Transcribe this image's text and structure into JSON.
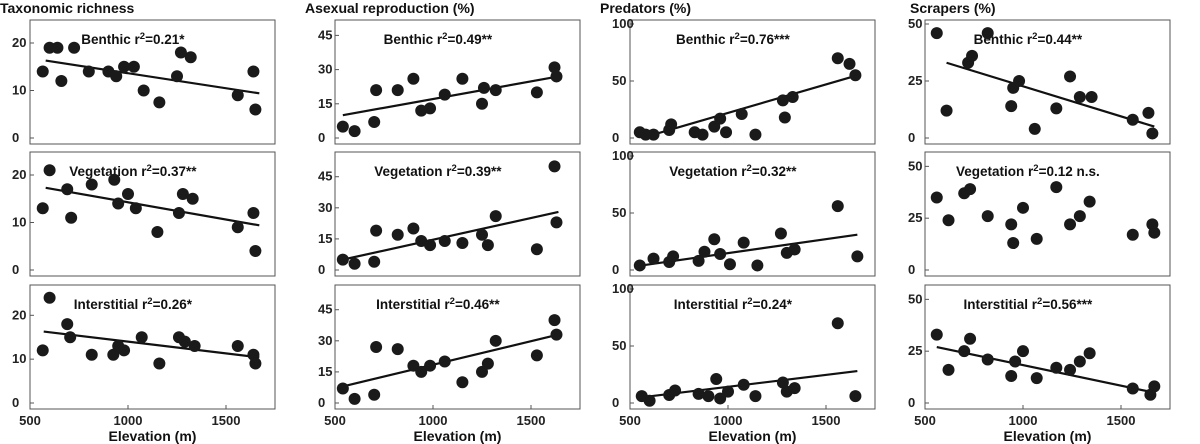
{
  "chart_data": [
    {
      "type": "scatter",
      "column": "Taxonomic richness",
      "panel": "Benthic",
      "stat": "r",
      "sup": "2",
      "val": "=0.21*",
      "xlim": [
        500,
        1750
      ],
      "ylim": [
        0,
        24
      ],
      "yticks": [
        "0",
        "10",
        "20"
      ],
      "ytick_values": [
        0,
        10,
        20
      ],
      "xticks": [],
      "points": [
        [
          565,
          14
        ],
        [
          600,
          19
        ],
        [
          640,
          19
        ],
        [
          660,
          12
        ],
        [
          725,
          19
        ],
        [
          800,
          14
        ],
        [
          900,
          14
        ],
        [
          940,
          13
        ],
        [
          980,
          15
        ],
        [
          1030,
          15
        ],
        [
          1080,
          10
        ],
        [
          1160,
          7.5
        ],
        [
          1250,
          13
        ],
        [
          1270,
          18
        ],
        [
          1320,
          17
        ],
        [
          1560,
          9
        ],
        [
          1640,
          14
        ],
        [
          1650,
          6
        ]
      ],
      "line": [
        [
          580,
          16.3
        ],
        [
          1670,
          9.4
        ]
      ]
    },
    {
      "type": "scatter",
      "column": "Asexual reproduction (%)",
      "panel": "Benthic",
      "stat": "r",
      "sup": "2",
      "val": "=0.49**",
      "xlim": [
        500,
        1750
      ],
      "ylim": [
        0,
        50
      ],
      "yticks": [
        "0",
        "15",
        "30",
        "45"
      ],
      "ytick_values": [
        0,
        15,
        30,
        45
      ],
      "xticks": [],
      "points": [
        [
          540,
          5
        ],
        [
          600,
          3
        ],
        [
          700,
          7
        ],
        [
          710,
          21
        ],
        [
          820,
          21
        ],
        [
          900,
          26
        ],
        [
          940,
          12
        ],
        [
          985,
          13
        ],
        [
          1060,
          19
        ],
        [
          1150,
          26
        ],
        [
          1250,
          15
        ],
        [
          1260,
          22
        ],
        [
          1320,
          21
        ],
        [
          1530,
          20
        ],
        [
          1620,
          31
        ],
        [
          1630,
          27
        ]
      ],
      "line": [
        [
          540,
          10
        ],
        [
          1640,
          27
        ]
      ]
    },
    {
      "type": "scatter",
      "column": "Predators (%)",
      "panel": "Benthic",
      "stat": "r",
      "sup": "2",
      "val": "=0.76***",
      "xlim": [
        500,
        1750
      ],
      "ylim": [
        0,
        100
      ],
      "yticks": [
        "0",
        "50",
        "100"
      ],
      "ytick_values": [
        0,
        50,
        100
      ],
      "xticks": [],
      "points": [
        [
          550,
          5
        ],
        [
          580,
          3
        ],
        [
          620,
          3
        ],
        [
          700,
          7
        ],
        [
          710,
          12
        ],
        [
          830,
          5
        ],
        [
          870,
          3
        ],
        [
          930,
          10
        ],
        [
          960,
          17
        ],
        [
          990,
          5
        ],
        [
          1070,
          21
        ],
        [
          1140,
          3
        ],
        [
          1280,
          33
        ],
        [
          1290,
          18
        ],
        [
          1330,
          36
        ],
        [
          1560,
          70
        ],
        [
          1620,
          65
        ],
        [
          1650,
          55
        ]
      ],
      "line": [
        [
          560,
          0
        ],
        [
          1660,
          55
        ]
      ]
    },
    {
      "type": "scatter",
      "column": "Scrapers (%)",
      "panel": "Benthic",
      "stat": "r",
      "sup": "2",
      "val": "=0.44**",
      "xlim": [
        500,
        1750
      ],
      "ylim": [
        0,
        50
      ],
      "yticks": [
        "0",
        "25",
        "50"
      ],
      "ytick_values": [
        0,
        25,
        50
      ],
      "xticks": [],
      "points": [
        [
          560,
          46
        ],
        [
          610,
          12
        ],
        [
          720,
          33
        ],
        [
          740,
          36
        ],
        [
          820,
          46
        ],
        [
          940,
          14
        ],
        [
          950,
          22
        ],
        [
          980,
          25
        ],
        [
          1060,
          4
        ],
        [
          1170,
          13
        ],
        [
          1240,
          27
        ],
        [
          1290,
          18
        ],
        [
          1350,
          18
        ],
        [
          1560,
          8
        ],
        [
          1640,
          11
        ],
        [
          1660,
          2
        ]
      ],
      "line": [
        [
          610,
          33
        ],
        [
          1670,
          5
        ]
      ]
    },
    {
      "type": "scatter",
      "column": "Taxonomic richness",
      "panel": "Vegetation",
      "stat": "r",
      "sup": "2",
      "val": "=0.37**",
      "xlim": [
        500,
        1750
      ],
      "ylim": [
        0,
        24
      ],
      "yticks": [
        "0",
        "10",
        "20"
      ],
      "ytick_values": [
        0,
        10,
        20
      ],
      "xticks": [],
      "points": [
        [
          565,
          13
        ],
        [
          600,
          21
        ],
        [
          690,
          17
        ],
        [
          710,
          11
        ],
        [
          815,
          18
        ],
        [
          930,
          19
        ],
        [
          950,
          14
        ],
        [
          1000,
          16
        ],
        [
          1040,
          13
        ],
        [
          1150,
          8
        ],
        [
          1260,
          12
        ],
        [
          1280,
          16
        ],
        [
          1330,
          15
        ],
        [
          1560,
          9
        ],
        [
          1640,
          12
        ],
        [
          1650,
          4
        ]
      ],
      "line": [
        [
          580,
          17.3
        ],
        [
          1670,
          9.4
        ]
      ]
    },
    {
      "type": "scatter",
      "column": "Asexual reproduction (%)",
      "panel": "Vegetation",
      "stat": "r",
      "sup": "2",
      "val": "=0.39**",
      "xlim": [
        500,
        1750
      ],
      "ylim": [
        0,
        55
      ],
      "yticks": [
        "0",
        "15",
        "30",
        "45"
      ],
      "ytick_values": [
        0,
        15,
        30,
        45
      ],
      "xticks": [],
      "points": [
        [
          540,
          5
        ],
        [
          600,
          3
        ],
        [
          700,
          4
        ],
        [
          710,
          19
        ],
        [
          820,
          17
        ],
        [
          900,
          20
        ],
        [
          940,
          14
        ],
        [
          985,
          12
        ],
        [
          1060,
          14
        ],
        [
          1150,
          13
        ],
        [
          1250,
          17
        ],
        [
          1280,
          12
        ],
        [
          1320,
          26
        ],
        [
          1530,
          10
        ],
        [
          1620,
          50
        ],
        [
          1630,
          23
        ]
      ],
      "line": [
        [
          540,
          5
        ],
        [
          1640,
          28
        ]
      ]
    },
    {
      "type": "scatter",
      "column": "Predators (%)",
      "panel": "Vegetation",
      "stat": "r",
      "sup": "2",
      "val": "=0.32**",
      "xlim": [
        500,
        1750
      ],
      "ylim": [
        0,
        100
      ],
      "yticks": [
        "0",
        "50",
        "100"
      ],
      "ytick_values": [
        0,
        50,
        100
      ],
      "xticks": [],
      "points": [
        [
          550,
          4
        ],
        [
          620,
          10
        ],
        [
          700,
          7
        ],
        [
          720,
          12
        ],
        [
          850,
          8
        ],
        [
          880,
          16
        ],
        [
          930,
          27
        ],
        [
          960,
          14
        ],
        [
          1010,
          5
        ],
        [
          1080,
          24
        ],
        [
          1150,
          4
        ],
        [
          1270,
          32
        ],
        [
          1300,
          15
        ],
        [
          1340,
          18
        ],
        [
          1560,
          56
        ],
        [
          1660,
          12
        ]
      ],
      "line": [
        [
          560,
          4
        ],
        [
          1660,
          31
        ]
      ]
    },
    {
      "type": "scatter",
      "column": "Scrapers (%)",
      "panel": "Vegetation",
      "stat": "r",
      "sup": "2",
      "val": "=0.12 n.s.",
      "xlim": [
        500,
        1750
      ],
      "ylim": [
        0,
        55
      ],
      "yticks": [
        "0",
        "25",
        "50"
      ],
      "ytick_values": [
        0,
        25,
        50
      ],
      "xticks": [],
      "points": [
        [
          560,
          35
        ],
        [
          620,
          24
        ],
        [
          700,
          37
        ],
        [
          730,
          39
        ],
        [
          820,
          26
        ],
        [
          940,
          22
        ],
        [
          950,
          13
        ],
        [
          1000,
          30
        ],
        [
          1070,
          15
        ],
        [
          1170,
          40
        ],
        [
          1240,
          22
        ],
        [
          1290,
          26
        ],
        [
          1340,
          33
        ],
        [
          1560,
          17
        ],
        [
          1660,
          22
        ],
        [
          1670,
          18
        ]
      ],
      "line": []
    },
    {
      "type": "scatter",
      "column": "Taxonomic richness",
      "panel": "Interstitial",
      "stat": "r",
      "sup": "2",
      "val": "=0.26*",
      "xlim": [
        500,
        1750
      ],
      "ylim": [
        0,
        26
      ],
      "yticks": [
        "0",
        "10",
        "20"
      ],
      "ytick_values": [
        0,
        10,
        20
      ],
      "xticks": [
        "500",
        "1000",
        "1500"
      ],
      "points": [
        [
          565,
          12
        ],
        [
          600,
          24
        ],
        [
          690,
          18
        ],
        [
          705,
          15
        ],
        [
          815,
          11
        ],
        [
          925,
          11
        ],
        [
          950,
          13
        ],
        [
          980,
          12
        ],
        [
          1070,
          15
        ],
        [
          1160,
          9
        ],
        [
          1260,
          15
        ],
        [
          1290,
          14
        ],
        [
          1340,
          13
        ],
        [
          1560,
          13
        ],
        [
          1640,
          11
        ],
        [
          1650,
          9
        ]
      ],
      "line": [
        [
          570,
          16.3
        ],
        [
          1670,
          10.4
        ]
      ]
    },
    {
      "type": "scatter",
      "column": "Asexual reproduction (%)",
      "panel": "Interstitial",
      "stat": "r",
      "sup": "2",
      "val": "=0.46**",
      "xlim": [
        500,
        1750
      ],
      "ylim": [
        0,
        55
      ],
      "yticks": [
        "0",
        "15",
        "30",
        "45"
      ],
      "ytick_values": [
        0,
        15,
        30,
        45
      ],
      "xticks": [
        "500",
        "1000",
        "1500"
      ],
      "points": [
        [
          540,
          7
        ],
        [
          600,
          2
        ],
        [
          700,
          4
        ],
        [
          710,
          27
        ],
        [
          820,
          26
        ],
        [
          900,
          18
        ],
        [
          940,
          15
        ],
        [
          985,
          18
        ],
        [
          1060,
          20
        ],
        [
          1150,
          10
        ],
        [
          1250,
          15
        ],
        [
          1280,
          19
        ],
        [
          1320,
          30
        ],
        [
          1530,
          23
        ],
        [
          1620,
          40
        ],
        [
          1630,
          33
        ]
      ],
      "line": [
        [
          540,
          8
        ],
        [
          1640,
          33
        ]
      ]
    },
    {
      "type": "scatter",
      "column": "Predators (%)",
      "panel": "Interstitial",
      "stat": "r",
      "sup": "2",
      "val": "=0.24*",
      "xlim": [
        500,
        1750
      ],
      "ylim": [
        0,
        100
      ],
      "yticks": [
        "0",
        "50",
        "100"
      ],
      "ytick_values": [
        0,
        50,
        100
      ],
      "xticks": [
        "500",
        "1000",
        "1500"
      ],
      "points": [
        [
          560,
          6
        ],
        [
          600,
          2
        ],
        [
          700,
          7
        ],
        [
          730,
          11
        ],
        [
          850,
          8
        ],
        [
          900,
          6
        ],
        [
          940,
          21
        ],
        [
          960,
          4
        ],
        [
          1000,
          10
        ],
        [
          1080,
          16
        ],
        [
          1140,
          6
        ],
        [
          1280,
          18
        ],
        [
          1300,
          10
        ],
        [
          1340,
          13
        ],
        [
          1560,
          70
        ],
        [
          1650,
          6
        ]
      ],
      "line": [
        [
          560,
          5
        ],
        [
          1660,
          28
        ]
      ]
    },
    {
      "type": "scatter",
      "column": "Scrapers (%)",
      "panel": "Interstitial",
      "stat": "r",
      "sup": "2",
      "val": "=0.56***",
      "xlim": [
        500,
        1750
      ],
      "ylim": [
        0,
        55
      ],
      "yticks": [
        "0",
        "25",
        "50"
      ],
      "ytick_values": [
        0,
        25,
        50
      ],
      "xticks": [
        "500",
        "1000",
        "1500"
      ],
      "points": [
        [
          560,
          33
        ],
        [
          620,
          16
        ],
        [
          700,
          25
        ],
        [
          730,
          31
        ],
        [
          820,
          21
        ],
        [
          940,
          13
        ],
        [
          960,
          20
        ],
        [
          1000,
          25
        ],
        [
          1070,
          12
        ],
        [
          1170,
          17
        ],
        [
          1240,
          16
        ],
        [
          1290,
          20
        ],
        [
          1340,
          24
        ],
        [
          1560,
          7
        ],
        [
          1650,
          4
        ],
        [
          1670,
          8
        ]
      ],
      "line": [
        [
          560,
          27
        ],
        [
          1670,
          5
        ]
      ]
    }
  ],
  "columns": [
    "Taxonomic richness",
    "Asexual reproduction (%)",
    "Predators (%)",
    "Scrapers (%)"
  ],
  "xlabel": "Elevation (m)",
  "colors": {
    "points": "#1a1a1a",
    "line": "#111111",
    "axes": "#555555"
  }
}
